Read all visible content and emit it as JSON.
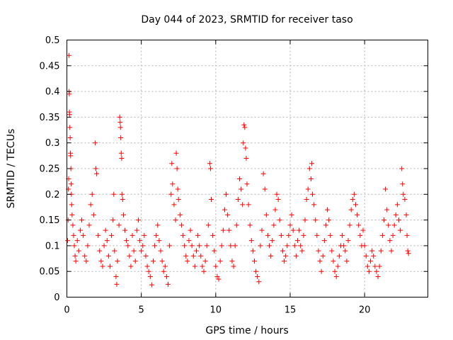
{
  "chart_data": {
    "type": "scatter",
    "title": "Day 044 of 2023, SRMTID for receiver taso",
    "xlabel": "GPS time / hours",
    "ylabel": "SRMTID / TECUs",
    "xlim": [
      0,
      24.25
    ],
    "ylim": [
      0,
      0.5
    ],
    "x_ticks": [
      0,
      5,
      10,
      15,
      20
    ],
    "x_tick_labels": [
      "0",
      "5",
      "10",
      "15",
      "20"
    ],
    "y_ticks": [
      0,
      0.05,
      0.1,
      0.15,
      0.2,
      0.25,
      0.3,
      0.35,
      0.4,
      0.45,
      0.5
    ],
    "y_tick_labels": [
      "0",
      "0.05",
      "0.1",
      "0.15",
      "0.2",
      "0.25",
      "0.3",
      "0.35",
      "0.4",
      "0.45",
      "0.5"
    ],
    "grid": true,
    "marker": "+",
    "color": "#ff0000",
    "series": [
      {
        "name": "SRMTID",
        "points": [
          [
            0.05,
            0.11
          ],
          [
            0.08,
            0.15
          ],
          [
            0.1,
            0.21
          ],
          [
            0.12,
            0.23
          ],
          [
            0.14,
            0.47
          ],
          [
            0.15,
            0.4
          ],
          [
            0.16,
            0.395
          ],
          [
            0.17,
            0.36
          ],
          [
            0.18,
            0.355
          ],
          [
            0.2,
            0.33
          ],
          [
            0.22,
            0.31
          ],
          [
            0.24,
            0.28
          ],
          [
            0.25,
            0.275
          ],
          [
            0.27,
            0.25
          ],
          [
            0.29,
            0.22
          ],
          [
            0.3,
            0.2
          ],
          [
            0.32,
            0.18
          ],
          [
            0.35,
            0.16
          ],
          [
            0.4,
            0.14
          ],
          [
            0.45,
            0.12
          ],
          [
            0.5,
            0.1
          ],
          [
            0.55,
            0.08
          ],
          [
            0.6,
            0.07
          ],
          [
            0.7,
            0.11
          ],
          [
            0.8,
            0.09
          ],
          [
            0.9,
            0.13
          ],
          [
            1.0,
            0.15
          ],
          [
            1.1,
            0.12
          ],
          [
            1.2,
            0.08
          ],
          [
            1.3,
            0.07
          ],
          [
            1.4,
            0.1
          ],
          [
            1.5,
            0.14
          ],
          [
            1.6,
            0.18
          ],
          [
            1.7,
            0.2
          ],
          [
            1.8,
            0.16
          ],
          [
            1.9,
            0.3
          ],
          [
            1.95,
            0.25
          ],
          [
            2.0,
            0.24
          ],
          [
            2.1,
            0.12
          ],
          [
            2.2,
            0.09
          ],
          [
            2.3,
            0.07
          ],
          [
            2.4,
            0.06
          ],
          [
            2.5,
            0.1
          ],
          [
            2.6,
            0.13
          ],
          [
            2.7,
            0.11
          ],
          [
            2.8,
            0.08
          ],
          [
            2.9,
            0.06
          ],
          [
            3.0,
            0.12
          ],
          [
            3.1,
            0.15
          ],
          [
            3.15,
            0.2
          ],
          [
            3.2,
            0.09
          ],
          [
            3.3,
            0.04
          ],
          [
            3.35,
            0.025
          ],
          [
            3.4,
            0.07
          ],
          [
            3.5,
            0.14
          ],
          [
            3.55,
            0.35
          ],
          [
            3.58,
            0.34
          ],
          [
            3.6,
            0.33
          ],
          [
            3.62,
            0.31
          ],
          [
            3.65,
            0.28
          ],
          [
            3.68,
            0.27
          ],
          [
            3.7,
            0.2
          ],
          [
            3.75,
            0.19
          ],
          [
            3.8,
            0.16
          ],
          [
            3.9,
            0.13
          ],
          [
            4.0,
            0.11
          ],
          [
            4.1,
            0.1
          ],
          [
            4.2,
            0.08
          ],
          [
            4.3,
            0.06
          ],
          [
            4.4,
            0.12
          ],
          [
            4.5,
            0.09
          ],
          [
            4.6,
            0.07
          ],
          [
            4.7,
            0.13
          ],
          [
            4.8,
            0.15
          ],
          [
            4.9,
            0.11
          ],
          [
            5.0,
            0.09
          ],
          [
            5.1,
            0.1
          ],
          [
            5.2,
            0.12
          ],
          [
            5.3,
            0.08
          ],
          [
            5.4,
            0.06
          ],
          [
            5.5,
            0.05
          ],
          [
            5.6,
            0.04
          ],
          [
            5.7,
            0.024
          ],
          [
            5.8,
            0.07
          ],
          [
            5.9,
            0.1
          ],
          [
            6.0,
            0.12
          ],
          [
            6.1,
            0.14
          ],
          [
            6.2,
            0.11
          ],
          [
            6.3,
            0.09
          ],
          [
            6.4,
            0.07
          ],
          [
            6.5,
            0.05
          ],
          [
            6.6,
            0.06
          ],
          [
            6.7,
            0.04
          ],
          [
            6.8,
            0.025
          ],
          [
            6.9,
            0.1
          ],
          [
            7.0,
            0.2
          ],
          [
            7.05,
            0.26
          ],
          [
            7.1,
            0.22
          ],
          [
            7.2,
            0.18
          ],
          [
            7.3,
            0.15
          ],
          [
            7.35,
            0.28
          ],
          [
            7.4,
            0.25
          ],
          [
            7.45,
            0.21
          ],
          [
            7.5,
            0.19
          ],
          [
            7.6,
            0.16
          ],
          [
            7.7,
            0.14
          ],
          [
            7.8,
            0.12
          ],
          [
            7.9,
            0.1
          ],
          [
            8.0,
            0.08
          ],
          [
            8.1,
            0.07
          ],
          [
            8.2,
            0.11
          ],
          [
            8.3,
            0.13
          ],
          [
            8.4,
            0.1
          ],
          [
            8.5,
            0.08
          ],
          [
            8.6,
            0.06
          ],
          [
            8.7,
            0.09
          ],
          [
            8.8,
            0.12
          ],
          [
            8.9,
            0.1
          ],
          [
            9.0,
            0.08
          ],
          [
            9.1,
            0.06
          ],
          [
            9.2,
            0.05
          ],
          [
            9.3,
            0.07
          ],
          [
            9.4,
            0.1
          ],
          [
            9.5,
            0.14
          ],
          [
            9.6,
            0.26
          ],
          [
            9.65,
            0.25
          ],
          [
            9.7,
            0.19
          ],
          [
            9.8,
            0.12
          ],
          [
            9.9,
            0.09
          ],
          [
            10.0,
            0.06
          ],
          [
            10.1,
            0.04
          ],
          [
            10.2,
            0.035
          ],
          [
            10.3,
            0.07
          ],
          [
            10.4,
            0.1
          ],
          [
            10.5,
            0.13
          ],
          [
            10.6,
            0.17
          ],
          [
            10.7,
            0.2
          ],
          [
            10.8,
            0.16
          ],
          [
            10.9,
            0.13
          ],
          [
            11.0,
            0.1
          ],
          [
            11.1,
            0.07
          ],
          [
            11.2,
            0.06
          ],
          [
            11.3,
            0.1
          ],
          [
            11.4,
            0.14
          ],
          [
            11.5,
            0.19
          ],
          [
            11.6,
            0.23
          ],
          [
            11.7,
            0.21
          ],
          [
            11.8,
            0.18
          ],
          [
            11.85,
            0.3
          ],
          [
            11.9,
            0.335
          ],
          [
            11.95,
            0.33
          ],
          [
            12.0,
            0.29
          ],
          [
            12.05,
            0.27
          ],
          [
            12.1,
            0.22
          ],
          [
            12.2,
            0.18
          ],
          [
            12.3,
            0.14
          ],
          [
            12.4,
            0.11
          ],
          [
            12.5,
            0.09
          ],
          [
            12.6,
            0.07
          ],
          [
            12.7,
            0.05
          ],
          [
            12.8,
            0.04
          ],
          [
            12.9,
            0.03
          ],
          [
            13.0,
            0.1
          ],
          [
            13.1,
            0.13
          ],
          [
            13.2,
            0.24
          ],
          [
            13.3,
            0.21
          ],
          [
            13.4,
            0.16
          ],
          [
            13.5,
            0.12
          ],
          [
            13.6,
            0.1
          ],
          [
            13.7,
            0.08
          ],
          [
            13.8,
            0.11
          ],
          [
            13.9,
            0.14
          ],
          [
            14.0,
            0.17
          ],
          [
            14.1,
            0.2
          ],
          [
            14.2,
            0.19
          ],
          [
            14.3,
            0.15
          ],
          [
            14.4,
            0.12
          ],
          [
            14.5,
            0.09
          ],
          [
            14.6,
            0.07
          ],
          [
            14.7,
            0.08
          ],
          [
            14.8,
            0.1
          ],
          [
            14.9,
            0.12
          ],
          [
            15.0,
            0.14
          ],
          [
            15.1,
            0.16
          ],
          [
            15.2,
            0.13
          ],
          [
            15.3,
            0.1
          ],
          [
            15.4,
            0.08
          ],
          [
            15.5,
            0.11
          ],
          [
            15.6,
            0.13
          ],
          [
            15.7,
            0.1
          ],
          [
            15.8,
            0.09
          ],
          [
            15.9,
            0.12
          ],
          [
            16.0,
            0.15
          ],
          [
            16.1,
            0.19
          ],
          [
            16.2,
            0.21
          ],
          [
            16.3,
            0.25
          ],
          [
            16.4,
            0.23
          ],
          [
            16.45,
            0.26
          ],
          [
            16.5,
            0.2
          ],
          [
            16.6,
            0.18
          ],
          [
            16.7,
            0.15
          ],
          [
            16.8,
            0.12
          ],
          [
            16.9,
            0.09
          ],
          [
            17.0,
            0.07
          ],
          [
            17.1,
            0.05
          ],
          [
            17.2,
            0.08
          ],
          [
            17.3,
            0.11
          ],
          [
            17.4,
            0.14
          ],
          [
            17.5,
            0.17
          ],
          [
            17.6,
            0.15
          ],
          [
            17.7,
            0.12
          ],
          [
            17.8,
            0.09
          ],
          [
            17.9,
            0.07
          ],
          [
            18.0,
            0.05
          ],
          [
            18.1,
            0.04
          ],
          [
            18.2,
            0.06
          ],
          [
            18.3,
            0.08
          ],
          [
            18.4,
            0.1
          ],
          [
            18.5,
            0.12
          ],
          [
            18.6,
            0.1
          ],
          [
            18.7,
            0.09
          ],
          [
            18.8,
            0.07
          ],
          [
            18.9,
            0.11
          ],
          [
            19.0,
            0.14
          ],
          [
            19.1,
            0.17
          ],
          [
            19.2,
            0.19
          ],
          [
            19.3,
            0.2
          ],
          [
            19.4,
            0.18
          ],
          [
            19.5,
            0.16
          ],
          [
            19.6,
            0.14
          ],
          [
            19.7,
            0.12
          ],
          [
            19.8,
            0.1
          ],
          [
            19.9,
            0.13
          ],
          [
            20.0,
            0.1
          ],
          [
            20.1,
            0.08
          ],
          [
            20.2,
            0.06
          ],
          [
            20.3,
            0.05
          ],
          [
            20.4,
            0.07
          ],
          [
            20.5,
            0.09
          ],
          [
            20.6,
            0.08
          ],
          [
            20.7,
            0.06
          ],
          [
            20.8,
            0.05
          ],
          [
            20.9,
            0.04
          ],
          [
            21.0,
            0.06
          ],
          [
            21.1,
            0.09
          ],
          [
            21.2,
            0.12
          ],
          [
            21.3,
            0.15
          ],
          [
            21.4,
            0.21
          ],
          [
            21.5,
            0.17
          ],
          [
            21.6,
            0.14
          ],
          [
            21.7,
            0.11
          ],
          [
            21.8,
            0.09
          ],
          [
            21.9,
            0.12
          ],
          [
            22.0,
            0.14
          ],
          [
            22.1,
            0.16
          ],
          [
            22.2,
            0.18
          ],
          [
            22.3,
            0.15
          ],
          [
            22.4,
            0.13
          ],
          [
            22.5,
            0.25
          ],
          [
            22.55,
            0.22
          ],
          [
            22.6,
            0.2
          ],
          [
            22.7,
            0.19
          ],
          [
            22.8,
            0.16
          ],
          [
            22.85,
            0.12
          ],
          [
            22.9,
            0.09
          ],
          [
            22.95,
            0.085
          ]
        ]
      }
    ]
  }
}
